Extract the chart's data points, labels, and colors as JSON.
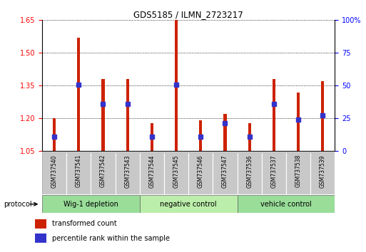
{
  "title": "GDS5185 / ILMN_2723217",
  "samples": [
    "GSM737540",
    "GSM737541",
    "GSM737542",
    "GSM737543",
    "GSM737544",
    "GSM737545",
    "GSM737546",
    "GSM737547",
    "GSM737536",
    "GSM737537",
    "GSM737538",
    "GSM737539"
  ],
  "bar_heights": [
    1.2,
    1.57,
    1.38,
    1.38,
    1.18,
    1.65,
    1.19,
    1.22,
    1.18,
    1.38,
    1.32,
    1.37
  ],
  "blue_positions": [
    1.115,
    1.355,
    1.265,
    1.265,
    1.115,
    1.355,
    1.115,
    1.178,
    1.115,
    1.265,
    1.195,
    1.215
  ],
  "bar_base": 1.05,
  "ylim_left": [
    1.05,
    1.65
  ],
  "yticks_left": [
    1.05,
    1.2,
    1.35,
    1.5,
    1.65
  ],
  "yticks_right_labels": [
    "0",
    "25",
    "50",
    "75",
    "100%"
  ],
  "yticks_right_vals": [
    0,
    25,
    50,
    75,
    100
  ],
  "ylim_right": [
    0,
    100
  ],
  "bar_color": "#cc2200",
  "blue_color": "#3333cc",
  "groups": [
    {
      "label": "Wig-1 depletion",
      "indices": [
        0,
        1,
        2,
        3
      ],
      "color": "#99dd99"
    },
    {
      "label": "negative control",
      "indices": [
        4,
        5,
        6,
        7
      ],
      "color": "#bbeeaa"
    },
    {
      "label": "vehicle control",
      "indices": [
        8,
        9,
        10,
        11
      ],
      "color": "#99dd99"
    }
  ],
  "sample_box_color": "#c8c8c8",
  "legend_red_label": "transformed count",
  "legend_blue_label": "percentile rank within the sample",
  "bar_width": 0.12
}
